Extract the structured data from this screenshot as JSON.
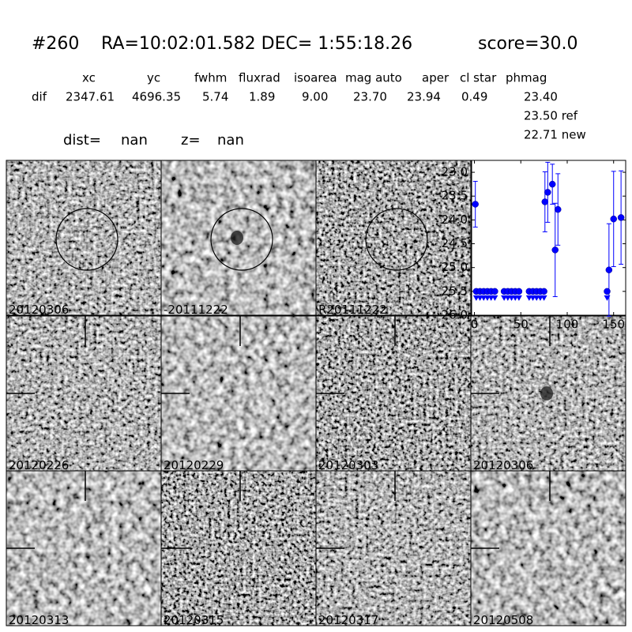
{
  "header": {
    "id": "#260",
    "coords": "RA=10:02:01.582 DEC= 1:55:18.26",
    "score": "score=30.0"
  },
  "table": {
    "columns": [
      "xc",
      "yc",
      "fwhm",
      "fluxrad",
      "isoarea",
      "mag auto",
      "aper",
      "cl star",
      "phmag"
    ],
    "row_label": "dif",
    "row": [
      "2347.61",
      "4696.35",
      "5.74",
      "1.89",
      "9.00",
      "23.70",
      "23.94",
      "0.49",
      "23.40"
    ],
    "ref": "23.50 ref",
    "new": "22.71 new"
  },
  "dist": {
    "dist_label": "dist=",
    "dist_value": "nan",
    "z_label": "z=",
    "z_value": "nan"
  },
  "panels": [
    {
      "label": "20120306"
    },
    {
      "label": "-20111222"
    },
    {
      "label": "R20111222"
    },
    {
      "label": "20120226"
    },
    {
      "label": "20120229"
    },
    {
      "label": "20120303"
    },
    {
      "label": "20120306",
      "label_color": "#ff0000"
    },
    {
      "label": "20120313"
    },
    {
      "label": "20120315"
    },
    {
      "label": "20120317"
    },
    {
      "label": "20120508"
    }
  ],
  "chart_data": {
    "type": "scatter",
    "xlim": [
      -3,
      163
    ],
    "xticks": [
      0,
      50,
      100,
      150
    ],
    "ylim": [
      26.0,
      22.75
    ],
    "yticks": [
      {
        "value": 23,
        "label": "23.0"
      },
      23.5,
      {
        "value": 24,
        "label": "24.0"
      },
      24.5,
      {
        "value": 25,
        "label": "25.0"
      },
      25.5,
      {
        "value": 26,
        "label": "26.0"
      }
    ],
    "series": [
      {
        "color": "#0000ff",
        "marker": "circle",
        "x": [
          1,
          76,
          79,
          84,
          87,
          90,
          145,
          150,
          158
        ],
        "values": [
          23.67,
          23.62,
          23.42,
          23.25,
          24.63,
          23.78,
          25.05,
          23.98,
          23.95
        ],
        "errors": [
          0.48,
          0.63,
          0.63,
          0.42,
          0.98,
          0.75,
          0.97,
          1.0,
          0.98
        ]
      },
      {
        "color": "#0000ff",
        "marker": "limit",
        "x": [
          2,
          6,
          10,
          14,
          18,
          22,
          32,
          36,
          40,
          44,
          48,
          59,
          63,
          67,
          71,
          75,
          143
        ],
        "values": [
          25.5,
          25.5,
          25.5,
          25.5,
          25.5,
          25.5,
          25.5,
          25.5,
          25.5,
          25.5,
          25.5,
          25.5,
          25.5,
          25.5,
          25.5,
          25.5,
          25.5
        ]
      }
    ]
  }
}
